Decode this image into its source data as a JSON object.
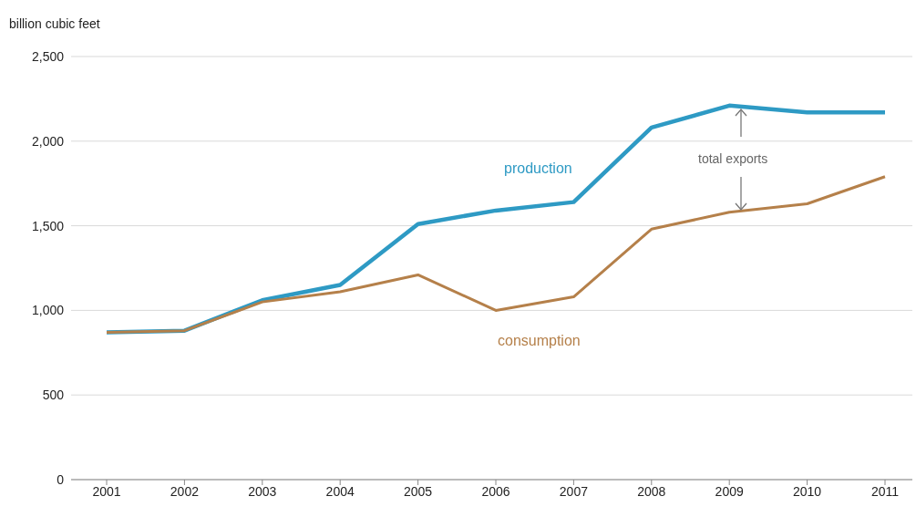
{
  "chart_data": {
    "type": "line",
    "ylabel": "billion cubic feet",
    "categories": [
      "2001",
      "2002",
      "2003",
      "2004",
      "2005",
      "2006",
      "2007",
      "2008",
      "2009",
      "2010",
      "2011"
    ],
    "series": [
      {
        "name": "production",
        "color": "#2e9ac4",
        "values": [
          870,
          880,
          1060,
          1150,
          1510,
          1590,
          1640,
          2080,
          2210,
          2170,
          2170
        ]
      },
      {
        "name": "consumption",
        "color": "#b5804a",
        "values": [
          870,
          880,
          1050,
          1110,
          1210,
          1000,
          1080,
          1480,
          1580,
          1630,
          1790
        ]
      }
    ],
    "annotations": [
      "total exports"
    ],
    "ylim": [
      0,
      2500
    ],
    "yticks": [
      0,
      500,
      {
        "value": 1000,
        "label": "1,000"
      },
      {
        "value": 1500,
        "label": "1,500"
      },
      {
        "value": 2000,
        "label": "2,000"
      },
      {
        "value": 2500,
        "label": "2,500"
      }
    ],
    "grid": "y",
    "legend": false
  }
}
